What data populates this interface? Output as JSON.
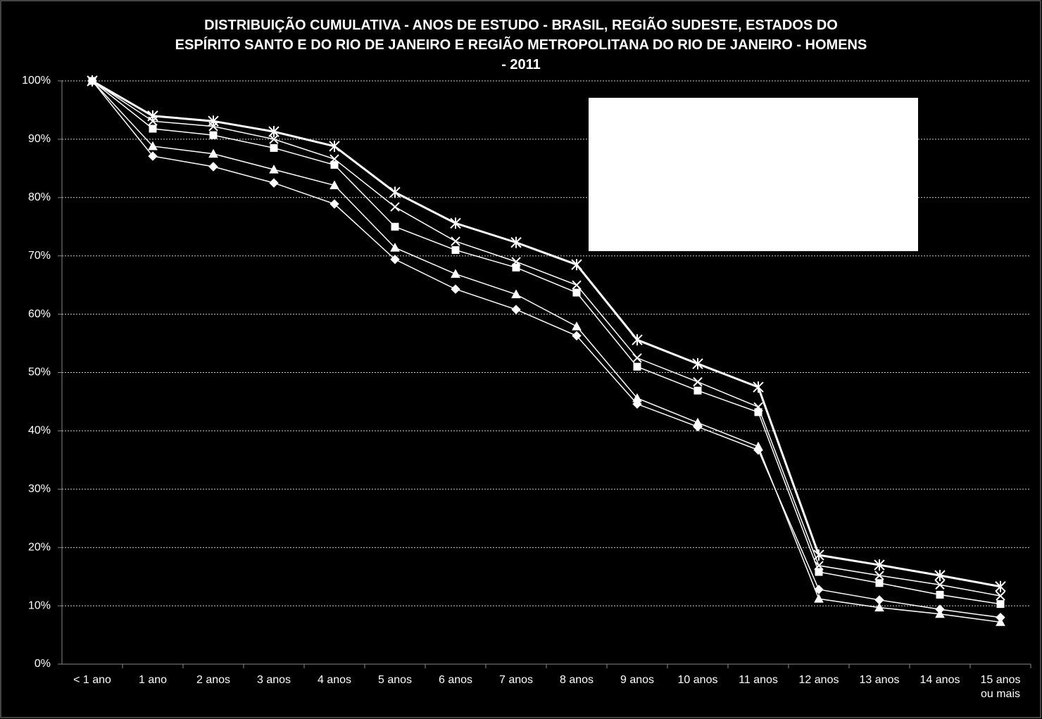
{
  "chart_data": {
    "type": "line",
    "title": "DISTRIBUIÇÃO CUMULATIVA - ANOS DE ESTUDO - BRASIL, REGIÃO SUDESTE, ESTADOS DO\nESPÍRITO SANTO E DO RIO DE JANEIRO  E REGIÃO METROPOLITANA DO RIO DE JANEIRO - HOMENS\n- 2011",
    "categories": [
      "< 1 ano",
      "1 ano",
      "2 anos",
      "3 anos",
      "4 anos",
      "5 anos",
      "6 anos",
      "7 anos",
      "8 anos",
      "9 anos",
      "10 anos",
      "11 anos",
      "12 anos",
      "13 anos",
      "14 anos",
      "15 anos ou mais"
    ],
    "series": [
      {
        "marker": "diamond",
        "color": "#ffffff",
        "values": [
          100,
          87.1,
          85.3,
          82.5,
          78.9,
          69.4,
          64.3,
          60.8,
          56.3,
          44.6,
          40.7,
          36.7,
          12.8,
          11.0,
          9.4,
          8.0
        ]
      },
      {
        "marker": "triangle",
        "color": "#ffffff",
        "values": [
          100,
          88.8,
          87.5,
          84.8,
          82.1,
          71.4,
          66.9,
          63.4,
          57.9,
          45.6,
          41.4,
          37.3,
          11.2,
          9.7,
          8.6,
          7.2
        ]
      },
      {
        "marker": "square",
        "color": "#ffffff",
        "values": [
          100,
          91.8,
          90.7,
          88.5,
          85.6,
          75.0,
          71.0,
          68.0,
          63.7,
          51.0,
          46.9,
          43.2,
          15.8,
          13.9,
          11.9,
          10.3
        ]
      },
      {
        "marker": "x",
        "color": "#ffffff",
        "values": [
          100,
          93.1,
          92.2,
          90.0,
          86.6,
          78.4,
          72.5,
          69.0,
          65.0,
          52.5,
          48.4,
          44.1,
          16.9,
          15.2,
          13.6,
          11.7
        ]
      },
      {
        "marker": "star",
        "color": "#ffffff",
        "values": [
          100,
          94.0,
          93.1,
          91.3,
          88.8,
          80.9,
          75.6,
          72.3,
          68.5,
          55.6,
          51.5,
          47.5,
          18.7,
          17.0,
          15.2,
          13.3
        ]
      }
    ],
    "ylim": [
      0,
      100
    ],
    "yticks": [
      {
        "value": 0,
        "label": "0%"
      },
      {
        "value": 10,
        "label": "10%"
      },
      {
        "value": 20,
        "label": "20%"
      },
      {
        "value": 30,
        "label": "30%"
      },
      {
        "value": 40,
        "label": "40%"
      },
      {
        "value": 50,
        "label": "50%"
      },
      {
        "value": 60,
        "label": "60%"
      },
      {
        "value": 70,
        "label": "70%"
      },
      {
        "value": 80,
        "label": "80%"
      },
      {
        "value": 90,
        "label": "90%"
      },
      {
        "value": 100,
        "label": "100%"
      }
    ],
    "grid": true
  }
}
